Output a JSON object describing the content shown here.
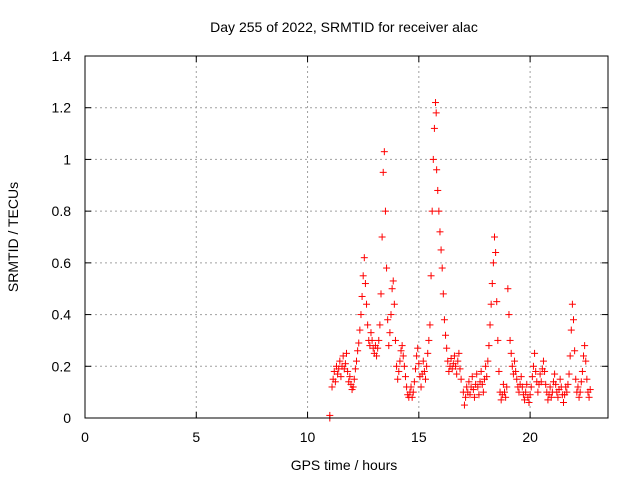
{
  "chart_data": {
    "type": "scatter",
    "title": "Day 255 of 2022, SRMTID for receiver alac",
    "xlabel": "GPS time / hours",
    "ylabel": "SRMTID / TECUs",
    "xlim": [
      0,
      23.5
    ],
    "ylim": [
      0,
      1.4
    ],
    "xticks": [
      0,
      5,
      10,
      15,
      20
    ],
    "yticks": [
      0,
      0.2,
      0.4,
      0.6,
      0.8,
      1,
      1.2,
      1.4
    ],
    "xtick_labels": [
      "0",
      "5",
      "10",
      "15",
      "20"
    ],
    "ytick_labels": [
      "0",
      "0.2",
      "0.4",
      "0.6",
      "0.8",
      "1",
      "1.2",
      "1.4"
    ],
    "grid": true,
    "marker": "plus",
    "series": [
      {
        "name": "SRMTID",
        "color": "#ff0000",
        "points": [
          [
            11.0,
            0.0
          ],
          [
            11.0,
            0.01
          ],
          [
            11.1,
            0.12
          ],
          [
            11.15,
            0.15
          ],
          [
            11.2,
            0.18
          ],
          [
            11.25,
            0.14
          ],
          [
            11.3,
            0.2
          ],
          [
            11.35,
            0.17
          ],
          [
            11.4,
            0.19
          ],
          [
            11.45,
            0.22
          ],
          [
            11.5,
            0.16
          ],
          [
            11.55,
            0.2
          ],
          [
            11.6,
            0.24
          ],
          [
            11.65,
            0.19
          ],
          [
            11.7,
            0.21
          ],
          [
            11.75,
            0.25
          ],
          [
            11.8,
            0.18
          ],
          [
            11.85,
            0.14
          ],
          [
            11.9,
            0.16
          ],
          [
            11.95,
            0.13
          ],
          [
            12.0,
            0.11
          ],
          [
            12.05,
            0.12
          ],
          [
            12.1,
            0.15
          ],
          [
            12.15,
            0.19
          ],
          [
            12.2,
            0.22
          ],
          [
            12.25,
            0.26
          ],
          [
            12.3,
            0.29
          ],
          [
            12.35,
            0.34
          ],
          [
            12.4,
            0.4
          ],
          [
            12.45,
            0.47
          ],
          [
            12.5,
            0.55
          ],
          [
            12.55,
            0.62
          ],
          [
            12.6,
            0.52
          ],
          [
            12.65,
            0.44
          ],
          [
            12.7,
            0.36
          ],
          [
            12.75,
            0.3
          ],
          [
            12.8,
            0.28
          ],
          [
            12.85,
            0.33
          ],
          [
            12.9,
            0.3
          ],
          [
            12.95,
            0.27
          ],
          [
            13.0,
            0.25
          ],
          [
            13.05,
            0.28
          ],
          [
            13.1,
            0.24
          ],
          [
            13.15,
            0.27
          ],
          [
            13.2,
            0.3
          ],
          [
            13.25,
            0.36
          ],
          [
            13.3,
            0.48
          ],
          [
            13.35,
            0.7
          ],
          [
            13.4,
            0.95
          ],
          [
            13.45,
            1.03
          ],
          [
            13.5,
            0.8
          ],
          [
            13.55,
            0.58
          ],
          [
            13.6,
            0.38
          ],
          [
            13.65,
            0.28
          ],
          [
            13.7,
            0.33
          ],
          [
            13.75,
            0.4
          ],
          [
            13.8,
            0.5
          ],
          [
            13.85,
            0.53
          ],
          [
            13.9,
            0.44
          ],
          [
            13.95,
            0.3
          ],
          [
            14.0,
            0.2
          ],
          [
            14.05,
            0.15
          ],
          [
            14.1,
            0.18
          ],
          [
            14.15,
            0.22
          ],
          [
            14.2,
            0.26
          ],
          [
            14.25,
            0.28
          ],
          [
            14.3,
            0.24
          ],
          [
            14.35,
            0.2
          ],
          [
            14.4,
            0.16
          ],
          [
            14.45,
            0.12
          ],
          [
            14.5,
            0.09
          ],
          [
            14.55,
            0.08
          ],
          [
            14.6,
            0.1
          ],
          [
            14.65,
            0.12
          ],
          [
            14.7,
            0.08
          ],
          [
            14.75,
            0.1
          ],
          [
            14.8,
            0.14
          ],
          [
            14.85,
            0.19
          ],
          [
            14.9,
            0.24
          ],
          [
            14.95,
            0.27
          ],
          [
            15.0,
            0.21
          ],
          [
            15.05,
            0.16
          ],
          [
            15.1,
            0.12
          ],
          [
            15.15,
            0.17
          ],
          [
            15.2,
            0.22
          ],
          [
            15.25,
            0.18
          ],
          [
            15.3,
            0.15
          ],
          [
            15.35,
            0.2
          ],
          [
            15.4,
            0.25
          ],
          [
            15.45,
            0.3
          ],
          [
            15.5,
            0.36
          ],
          [
            15.55,
            0.55
          ],
          [
            15.6,
            0.8
          ],
          [
            15.65,
            1.0
          ],
          [
            15.7,
            1.12
          ],
          [
            15.75,
            1.22
          ],
          [
            15.78,
            1.18
          ],
          [
            15.8,
            0.96
          ],
          [
            15.85,
            0.88
          ],
          [
            15.9,
            0.8
          ],
          [
            15.95,
            0.72
          ],
          [
            16.0,
            0.65
          ],
          [
            16.05,
            0.58
          ],
          [
            16.1,
            0.48
          ],
          [
            16.15,
            0.38
          ],
          [
            16.2,
            0.32
          ],
          [
            16.25,
            0.27
          ],
          [
            16.3,
            0.22
          ],
          [
            16.35,
            0.18
          ],
          [
            16.4,
            0.2
          ],
          [
            16.45,
            0.23
          ],
          [
            16.5,
            0.19
          ],
          [
            16.55,
            0.21
          ],
          [
            16.6,
            0.24
          ],
          [
            16.65,
            0.2
          ],
          [
            16.7,
            0.17
          ],
          [
            16.75,
            0.22
          ],
          [
            16.8,
            0.25
          ],
          [
            16.85,
            0.19
          ],
          [
            16.9,
            0.15
          ],
          [
            17.0,
            0.1
          ],
          [
            17.05,
            0.05
          ],
          [
            17.1,
            0.08
          ],
          [
            17.15,
            0.12
          ],
          [
            17.2,
            0.1
          ],
          [
            17.25,
            0.14
          ],
          [
            17.3,
            0.09
          ],
          [
            17.35,
            0.12
          ],
          [
            17.4,
            0.16
          ],
          [
            17.45,
            0.11
          ],
          [
            17.5,
            0.08
          ],
          [
            17.55,
            0.13
          ],
          [
            17.6,
            0.17
          ],
          [
            17.65,
            0.12
          ],
          [
            17.7,
            0.09
          ],
          [
            17.75,
            0.14
          ],
          [
            17.8,
            0.18
          ],
          [
            17.85,
            0.13
          ],
          [
            17.9,
            0.1
          ],
          [
            17.95,
            0.15
          ],
          [
            18.0,
            0.2
          ],
          [
            18.05,
            0.16
          ],
          [
            18.1,
            0.22
          ],
          [
            18.15,
            0.28
          ],
          [
            18.2,
            0.36
          ],
          [
            18.25,
            0.44
          ],
          [
            18.3,
            0.52
          ],
          [
            18.35,
            0.6
          ],
          [
            18.4,
            0.7
          ],
          [
            18.45,
            0.64
          ],
          [
            18.5,
            0.45
          ],
          [
            18.55,
            0.3
          ],
          [
            18.6,
            0.18
          ],
          [
            18.65,
            0.1
          ],
          [
            18.7,
            0.07
          ],
          [
            18.75,
            0.09
          ],
          [
            18.8,
            0.13
          ],
          [
            18.85,
            0.1
          ],
          [
            18.9,
            0.08
          ],
          [
            18.95,
            0.12
          ],
          [
            19.0,
            0.5
          ],
          [
            19.05,
            0.4
          ],
          [
            19.1,
            0.3
          ],
          [
            19.15,
            0.25
          ],
          [
            19.2,
            0.2
          ],
          [
            19.25,
            0.17
          ],
          [
            19.3,
            0.22
          ],
          [
            19.35,
            0.18
          ],
          [
            19.4,
            0.15
          ],
          [
            19.45,
            0.12
          ],
          [
            19.5,
            0.1
          ],
          [
            19.55,
            0.13
          ],
          [
            19.6,
            0.16
          ],
          [
            19.65,
            0.12
          ],
          [
            19.7,
            0.09
          ],
          [
            19.75,
            0.07
          ],
          [
            19.8,
            0.1
          ],
          [
            19.85,
            0.13
          ],
          [
            19.9,
            0.08
          ],
          [
            19.95,
            0.06
          ],
          [
            20.0,
            0.09
          ],
          [
            20.05,
            0.12
          ],
          [
            20.1,
            0.16
          ],
          [
            20.15,
            0.2
          ],
          [
            20.2,
            0.25
          ],
          [
            20.25,
            0.18
          ],
          [
            20.3,
            0.14
          ],
          [
            20.35,
            0.1
          ],
          [
            20.4,
            0.13
          ],
          [
            20.45,
            0.17
          ],
          [
            20.5,
            0.14
          ],
          [
            20.55,
            0.19
          ],
          [
            20.6,
            0.22
          ],
          [
            20.65,
            0.18
          ],
          [
            20.7,
            0.13
          ],
          [
            20.75,
            0.1
          ],
          [
            20.8,
            0.07
          ],
          [
            20.85,
            0.09
          ],
          [
            20.9,
            0.12
          ],
          [
            20.95,
            0.08
          ],
          [
            21.0,
            0.1
          ],
          [
            21.05,
            0.14
          ],
          [
            21.1,
            0.17
          ],
          [
            21.15,
            0.13
          ],
          [
            21.2,
            0.1
          ],
          [
            21.25,
            0.08
          ],
          [
            21.3,
            0.11
          ],
          [
            21.35,
            0.15
          ],
          [
            21.4,
            0.12
          ],
          [
            21.45,
            0.09
          ],
          [
            21.5,
            0.06
          ],
          [
            21.55,
            0.09
          ],
          [
            21.6,
            0.12
          ],
          [
            21.65,
            0.1
          ],
          [
            21.7,
            0.13
          ],
          [
            21.75,
            0.17
          ],
          [
            21.8,
            0.24
          ],
          [
            21.85,
            0.34
          ],
          [
            21.9,
            0.44
          ],
          [
            21.95,
            0.38
          ],
          [
            22.0,
            0.26
          ],
          [
            22.05,
            0.15
          ],
          [
            22.1,
            0.1
          ],
          [
            22.15,
            0.12
          ],
          [
            22.2,
            0.08
          ],
          [
            22.25,
            0.1
          ],
          [
            22.3,
            0.14
          ],
          [
            22.35,
            0.18
          ],
          [
            22.4,
            0.24
          ],
          [
            22.45,
            0.28
          ],
          [
            22.5,
            0.22
          ],
          [
            22.55,
            0.15
          ],
          [
            22.6,
            0.1
          ],
          [
            22.65,
            0.08
          ],
          [
            22.7,
            0.11
          ]
        ]
      }
    ]
  }
}
